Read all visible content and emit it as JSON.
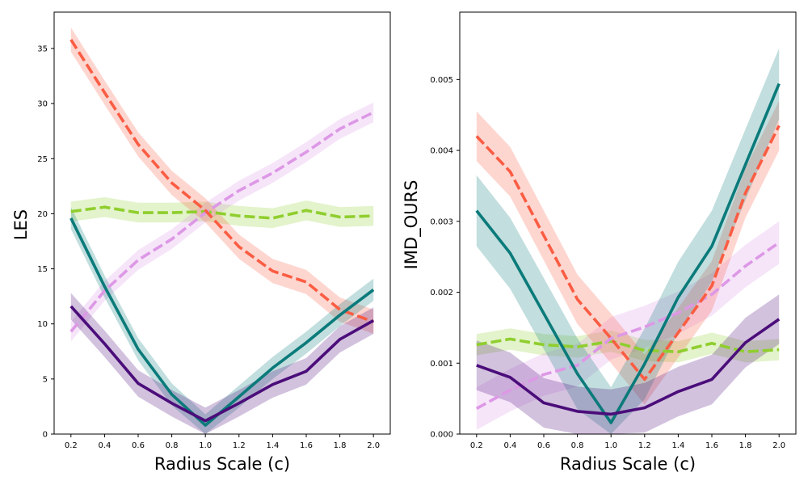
{
  "chart_data": [
    {
      "type": "line",
      "title": "",
      "xlabel": "Radius Scale (c)",
      "ylabel": "LES",
      "xlim": [
        0.1,
        2.1
      ],
      "ylim": [
        0,
        38.3
      ],
      "xticks": [
        0.2,
        0.4,
        0.6,
        0.8,
        1.0,
        1.2,
        1.4,
        1.6,
        1.8,
        2.0
      ],
      "xtick_labels": [
        "0.2",
        "0.4",
        "0.6",
        "0.8",
        "1.0",
        "1.2",
        "1.4",
        "1.6",
        "1.8",
        "2.0"
      ],
      "yticks": [
        0,
        5,
        10,
        15,
        20,
        25,
        30,
        35
      ],
      "ytick_labels": [
        "0",
        "5",
        "10",
        "15",
        "20",
        "25",
        "30",
        "35"
      ],
      "grid": false,
      "legend": false,
      "x": [
        0.2,
        0.4,
        0.6,
        0.8,
        1.0,
        1.2,
        1.4,
        1.6,
        1.8,
        2.0
      ],
      "series": [
        {
          "color": "#8fce2e",
          "style": "dashed",
          "values": [
            20.2,
            20.6,
            20.1,
            20.1,
            20.2,
            19.8,
            19.6,
            20.3,
            19.7,
            19.8
          ],
          "band": 0.9
        },
        {
          "color": "#dd98e6",
          "style": "dashed",
          "values": [
            9.3,
            13.0,
            15.8,
            17.7,
            20.1,
            22.1,
            23.7,
            25.6,
            27.7,
            29.2
          ],
          "band": 0.9
        },
        {
          "color": "#fa5d43",
          "style": "dashed",
          "values": [
            35.8,
            31.0,
            26.3,
            22.8,
            20.3,
            17.0,
            14.8,
            13.8,
            11.3,
            10.2
          ],
          "band": 1.1
        },
        {
          "color": "#0b7a7a",
          "style": "solid",
          "values": [
            19.6,
            13.4,
            7.7,
            3.6,
            0.8,
            3.4,
            6.0,
            8.3,
            10.8,
            13.1
          ],
          "band": 1.0
        },
        {
          "color": "#4b0d7a",
          "style": "solid",
          "values": [
            11.6,
            8.2,
            4.6,
            2.8,
            1.2,
            2.8,
            4.5,
            5.7,
            8.6,
            10.3
          ],
          "band": 1.2
        }
      ]
    },
    {
      "type": "line",
      "title": "",
      "xlabel": "Radius Scale (c)",
      "ylabel": "IMD_OURS",
      "xlim": [
        0.1,
        2.1
      ],
      "ylim": [
        0,
        0.00595
      ],
      "xticks": [
        0.2,
        0.4,
        0.6,
        0.8,
        1.0,
        1.2,
        1.4,
        1.6,
        1.8,
        2.0
      ],
      "xtick_labels": [
        "0.2",
        "0.4",
        "0.6",
        "0.8",
        "1.0",
        "1.2",
        "1.4",
        "1.6",
        "1.8",
        "2.0"
      ],
      "yticks": [
        0,
        0.001,
        0.002,
        0.003,
        0.004,
        0.005
      ],
      "ytick_labels": [
        "0.000",
        "0.001",
        "0.002",
        "0.003",
        "0.004",
        "0.005"
      ],
      "grid": false,
      "legend": false,
      "x": [
        0.2,
        0.4,
        0.6,
        0.8,
        1.0,
        1.2,
        1.4,
        1.6,
        1.8,
        2.0
      ],
      "series": [
        {
          "color": "#8fce2e",
          "style": "dashed",
          "values": [
            0.00126,
            0.00134,
            0.00126,
            0.00123,
            0.00131,
            0.00118,
            0.00116,
            0.00128,
            0.00116,
            0.00119
          ],
          "band": 0.00015
        },
        {
          "color": "#dd98e6",
          "style": "dashed",
          "values": [
            0.00036,
            0.00062,
            0.00084,
            0.00097,
            0.00135,
            0.00151,
            0.00171,
            0.00197,
            0.00237,
            0.0027
          ],
          "band": 0.0003
        },
        {
          "color": "#fa5d43",
          "style": "dashed",
          "values": [
            0.0042,
            0.0037,
            0.0028,
            0.0019,
            0.00135,
            0.00077,
            0.00143,
            0.00209,
            0.0034,
            0.00435
          ],
          "band": 0.00035
        },
        {
          "color": "#0b7a7a",
          "style": "solid",
          "values": [
            0.00315,
            0.00255,
            0.0017,
            0.00085,
            0.00016,
            0.00099,
            0.00193,
            0.00265,
            0.0038,
            0.00494
          ],
          "band": 0.0005
        },
        {
          "color": "#4b0d7a",
          "style": "solid",
          "values": [
            0.00097,
            0.0008,
            0.00044,
            0.00032,
            0.00028,
            0.00037,
            0.0006,
            0.00077,
            0.00129,
            0.00162
          ],
          "band": 0.00035
        }
      ]
    }
  ]
}
